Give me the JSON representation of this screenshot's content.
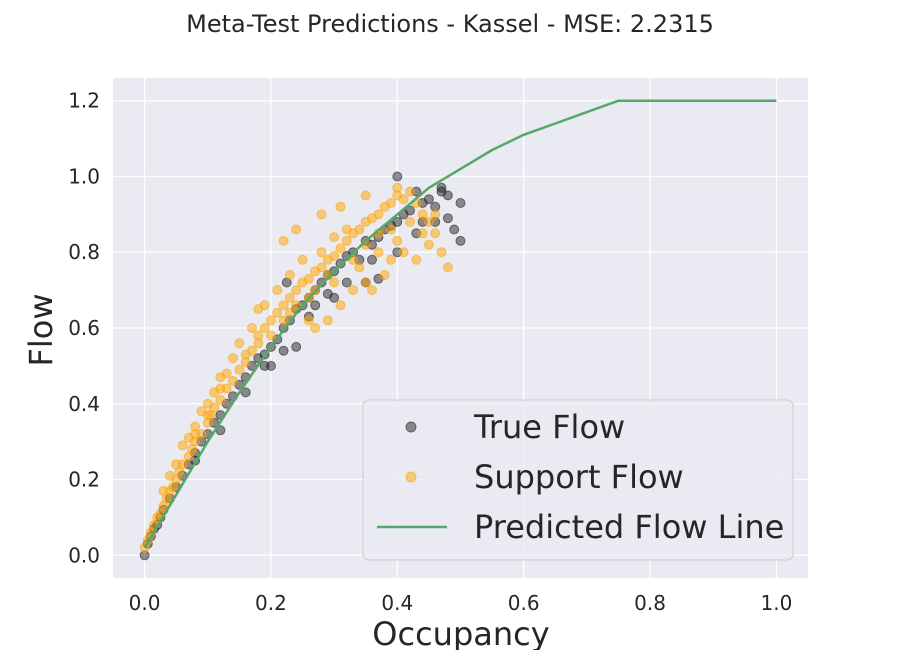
{
  "chart_data": {
    "type": "scatter",
    "title": "Meta-Test Predictions - Kassel - MSE: 2.2315",
    "xlabel": "Occupancy",
    "ylabel": "Flow",
    "xlim": [
      -0.05,
      1.05
    ],
    "ylim": [
      -0.06,
      1.26
    ],
    "xticks": [
      "0.0",
      "0.2",
      "0.4",
      "0.6",
      "0.8",
      "1.0"
    ],
    "yticks": [
      "0.0",
      "0.2",
      "0.4",
      "0.6",
      "0.8",
      "1.0",
      "1.2"
    ],
    "grid": true,
    "legend_position": "lower-right",
    "colors": {
      "background": "#eaeaf2",
      "grid": "#ffffff",
      "true_flow": "#262626",
      "support_flow": "#ffa500",
      "predicted_line": "#55a868"
    },
    "series": [
      {
        "name": "True Flow",
        "kind": "scatter",
        "points": [
          [
            0.0,
            0.0
          ],
          [
            0.005,
            0.03
          ],
          [
            0.01,
            0.05
          ],
          [
            0.015,
            0.07
          ],
          [
            0.02,
            0.08
          ],
          [
            0.025,
            0.1
          ],
          [
            0.03,
            0.12
          ],
          [
            0.04,
            0.15
          ],
          [
            0.05,
            0.18
          ],
          [
            0.06,
            0.21
          ],
          [
            0.07,
            0.24
          ],
          [
            0.08,
            0.27
          ],
          [
            0.09,
            0.3
          ],
          [
            0.1,
            0.32
          ],
          [
            0.11,
            0.35
          ],
          [
            0.12,
            0.37
          ],
          [
            0.13,
            0.4
          ],
          [
            0.14,
            0.42
          ],
          [
            0.15,
            0.45
          ],
          [
            0.16,
            0.47
          ],
          [
            0.17,
            0.5
          ],
          [
            0.18,
            0.52
          ],
          [
            0.19,
            0.53
          ],
          [
            0.2,
            0.55
          ],
          [
            0.21,
            0.57
          ],
          [
            0.22,
            0.6
          ],
          [
            0.23,
            0.62
          ],
          [
            0.24,
            0.65
          ],
          [
            0.25,
            0.66
          ],
          [
            0.26,
            0.68
          ],
          [
            0.27,
            0.7
          ],
          [
            0.28,
            0.72
          ],
          [
            0.29,
            0.74
          ],
          [
            0.3,
            0.75
          ],
          [
            0.31,
            0.77
          ],
          [
            0.32,
            0.79
          ],
          [
            0.33,
            0.8
          ],
          [
            0.34,
            0.78
          ],
          [
            0.35,
            0.83
          ],
          [
            0.36,
            0.82
          ],
          [
            0.37,
            0.84
          ],
          [
            0.38,
            0.86
          ],
          [
            0.39,
            0.87
          ],
          [
            0.4,
            0.88
          ],
          [
            0.4,
            1.0
          ],
          [
            0.41,
            0.9
          ],
          [
            0.42,
            0.91
          ],
          [
            0.43,
            0.85
          ],
          [
            0.44,
            0.93
          ],
          [
            0.45,
            0.94
          ],
          [
            0.46,
            0.92
          ],
          [
            0.47,
            0.96
          ],
          [
            0.48,
            0.89
          ],
          [
            0.49,
            0.86
          ],
          [
            0.5,
            0.93
          ],
          [
            0.5,
            0.83
          ],
          [
            0.47,
            0.97
          ],
          [
            0.43,
            0.96
          ],
          [
            0.36,
            0.78
          ],
          [
            0.37,
            0.73
          ],
          [
            0.27,
            0.66
          ],
          [
            0.24,
            0.55
          ],
          [
            0.19,
            0.5
          ],
          [
            0.16,
            0.43
          ],
          [
            0.12,
            0.33
          ],
          [
            0.08,
            0.25
          ],
          [
            0.225,
            0.72
          ],
          [
            0.2,
            0.5
          ],
          [
            0.29,
            0.69
          ],
          [
            0.32,
            0.72
          ],
          [
            0.4,
            0.8
          ],
          [
            0.46,
            0.88
          ],
          [
            0.48,
            0.95
          ],
          [
            0.44,
            0.88
          ],
          [
            0.35,
            0.72
          ],
          [
            0.3,
            0.68
          ],
          [
            0.26,
            0.63
          ],
          [
            0.22,
            0.54
          ]
        ]
      },
      {
        "name": "Support Flow",
        "kind": "scatter",
        "points": [
          [
            0.0,
            0.02
          ],
          [
            0.005,
            0.04
          ],
          [
            0.01,
            0.06
          ],
          [
            0.015,
            0.08
          ],
          [
            0.02,
            0.1
          ],
          [
            0.025,
            0.11
          ],
          [
            0.03,
            0.13
          ],
          [
            0.035,
            0.15
          ],
          [
            0.04,
            0.17
          ],
          [
            0.045,
            0.18
          ],
          [
            0.05,
            0.2
          ],
          [
            0.055,
            0.22
          ],
          [
            0.06,
            0.24
          ],
          [
            0.07,
            0.26
          ],
          [
            0.075,
            0.28
          ],
          [
            0.08,
            0.3
          ],
          [
            0.09,
            0.32
          ],
          [
            0.1,
            0.35
          ],
          [
            0.105,
            0.37
          ],
          [
            0.11,
            0.39
          ],
          [
            0.12,
            0.41
          ],
          [
            0.13,
            0.44
          ],
          [
            0.14,
            0.46
          ],
          [
            0.15,
            0.49
          ],
          [
            0.16,
            0.51
          ],
          [
            0.17,
            0.54
          ],
          [
            0.18,
            0.56
          ],
          [
            0.19,
            0.6
          ],
          [
            0.2,
            0.62
          ],
          [
            0.21,
            0.64
          ],
          [
            0.22,
            0.66
          ],
          [
            0.23,
            0.68
          ],
          [
            0.24,
            0.7
          ],
          [
            0.25,
            0.72
          ],
          [
            0.26,
            0.73
          ],
          [
            0.27,
            0.75
          ],
          [
            0.28,
            0.76
          ],
          [
            0.29,
            0.78
          ],
          [
            0.3,
            0.79
          ],
          [
            0.31,
            0.81
          ],
          [
            0.32,
            0.83
          ],
          [
            0.33,
            0.85
          ],
          [
            0.34,
            0.86
          ],
          [
            0.35,
            0.88
          ],
          [
            0.36,
            0.89
          ],
          [
            0.37,
            0.9
          ],
          [
            0.38,
            0.92
          ],
          [
            0.39,
            0.93
          ],
          [
            0.4,
            0.95
          ],
          [
            0.41,
            0.94
          ],
          [
            0.42,
            0.96
          ],
          [
            0.43,
            0.93
          ],
          [
            0.44,
            0.9
          ],
          [
            0.45,
            0.88
          ],
          [
            0.46,
            0.85
          ],
          [
            0.47,
            0.8
          ],
          [
            0.48,
            0.76
          ],
          [
            0.4,
            0.97
          ],
          [
            0.35,
            0.95
          ],
          [
            0.31,
            0.92
          ],
          [
            0.28,
            0.9
          ],
          [
            0.24,
            0.86
          ],
          [
            0.22,
            0.83
          ],
          [
            0.18,
            0.65
          ],
          [
            0.15,
            0.56
          ],
          [
            0.12,
            0.47
          ],
          [
            0.1,
            0.4
          ],
          [
            0.08,
            0.34
          ],
          [
            0.06,
            0.29
          ],
          [
            0.04,
            0.21
          ],
          [
            0.03,
            0.17
          ],
          [
            0.26,
            0.62
          ],
          [
            0.27,
            0.6
          ],
          [
            0.29,
            0.62
          ],
          [
            0.31,
            0.66
          ],
          [
            0.33,
            0.7
          ],
          [
            0.35,
            0.72
          ],
          [
            0.36,
            0.7
          ],
          [
            0.38,
            0.74
          ],
          [
            0.39,
            0.78
          ],
          [
            0.41,
            0.8
          ],
          [
            0.43,
            0.78
          ],
          [
            0.45,
            0.82
          ],
          [
            0.34,
            0.76
          ],
          [
            0.37,
            0.8
          ],
          [
            0.32,
            0.86
          ],
          [
            0.3,
            0.84
          ],
          [
            0.28,
            0.8
          ],
          [
            0.25,
            0.78
          ],
          [
            0.23,
            0.74
          ],
          [
            0.21,
            0.7
          ],
          [
            0.19,
            0.66
          ],
          [
            0.17,
            0.6
          ],
          [
            0.14,
            0.52
          ],
          [
            0.13,
            0.48
          ],
          [
            0.11,
            0.43
          ],
          [
            0.09,
            0.38
          ],
          [
            0.07,
            0.31
          ],
          [
            0.05,
            0.24
          ],
          [
            0.42,
            0.88
          ],
          [
            0.44,
            0.85
          ],
          [
            0.46,
            0.9
          ],
          [
            0.2,
            0.58
          ],
          [
            0.22,
            0.62
          ],
          [
            0.24,
            0.66
          ],
          [
            0.27,
            0.7
          ],
          [
            0.29,
            0.74
          ],
          [
            0.33,
            0.78
          ],
          [
            0.35,
            0.82
          ],
          [
            0.37,
            0.85
          ],
          [
            0.39,
            0.86
          ],
          [
            0.4,
            0.83
          ],
          [
            0.3,
            0.72
          ],
          [
            0.26,
            0.68
          ],
          [
            0.23,
            0.64
          ],
          [
            0.18,
            0.58
          ],
          [
            0.16,
            0.53
          ],
          [
            0.12,
            0.44
          ],
          [
            0.1,
            0.37
          ],
          [
            0.08,
            0.32
          ]
        ]
      },
      {
        "name": "Predicted Flow Line",
        "kind": "line",
        "points": [
          [
            0.0,
            0.02
          ],
          [
            0.05,
            0.16
          ],
          [
            0.1,
            0.3
          ],
          [
            0.15,
            0.43
          ],
          [
            0.2,
            0.55
          ],
          [
            0.25,
            0.66
          ],
          [
            0.3,
            0.75
          ],
          [
            0.35,
            0.83
          ],
          [
            0.4,
            0.9
          ],
          [
            0.45,
            0.97
          ],
          [
            0.5,
            1.02
          ],
          [
            0.55,
            1.07
          ],
          [
            0.6,
            1.11
          ],
          [
            0.65,
            1.14
          ],
          [
            0.7,
            1.17
          ],
          [
            0.75,
            1.2
          ],
          [
            0.8,
            1.2
          ],
          [
            0.9,
            1.2
          ],
          [
            1.0,
            1.2
          ]
        ]
      }
    ]
  }
}
